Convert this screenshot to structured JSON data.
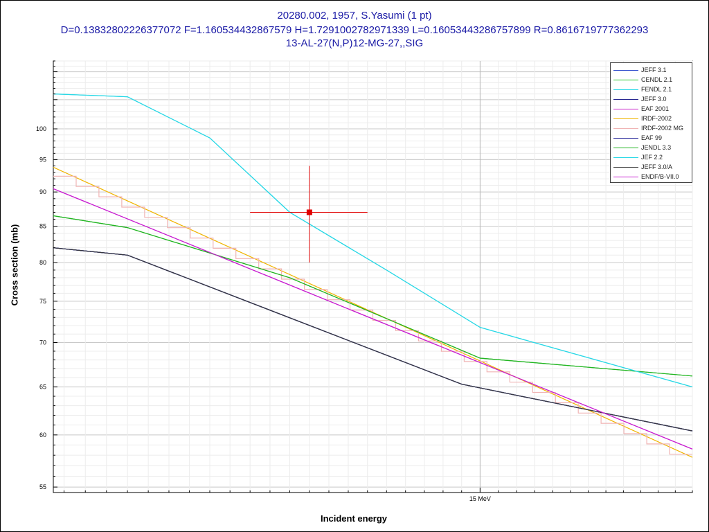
{
  "title": {
    "line1": "20280.002, 1957, S.Yasumi (1 pt)",
    "line2": "D=0.13832802226377072 F=1.160534432867579 H=1.7291002782971339 L=0.16053443286757899 R=0.8616719777362293",
    "line3": "13-AL-27(N,P)12-MG-27,,SIG"
  },
  "axes": {
    "xlabel": "Incident energy",
    "ylabel": "Cross section (mb)",
    "x_tick_label": "15 MeV"
  },
  "colors": {
    "title": "#1a1aa6",
    "data_point": "#e00000"
  },
  "chart_data": {
    "type": "line",
    "title": "20280.002, 1957, S.Yasumi (1 pt)",
    "xlabel": "Incident energy",
    "ylabel": "Cross section (mb)",
    "xscale": "log",
    "yscale": "log",
    "xlim": [
      12.85,
      16.2
    ],
    "ylim": [
      54.5,
      112
    ],
    "y_ticks": [
      55,
      60,
      65,
      70,
      75,
      80,
      85,
      90,
      95,
      100
    ],
    "x_ticks": [
      {
        "value": 15.0,
        "label": "15 MeV"
      }
    ],
    "grid": true,
    "legend": "top-right",
    "series": [
      {
        "name": "JEFF 3.1",
        "color": "#1e3cc8",
        "x": [
          12.85,
          13.2,
          14.9,
          16.2
        ],
        "y": [
          82.0,
          81.0,
          65.3,
          60.4
        ]
      },
      {
        "name": "CENDL 2.1",
        "color": "#22c422",
        "x": [
          12.85,
          13.2,
          14.0,
          15.0,
          16.2
        ],
        "y": [
          86.5,
          84.8,
          78.0,
          68.2,
          66.2
        ]
      },
      {
        "name": "FENDL 2.1",
        "color": "#2ad8e6",
        "x": [
          12.85,
          13.2,
          13.6,
          14.0,
          14.5,
          15.0,
          16.2
        ],
        "y": [
          106.0,
          105.5,
          98.5,
          87.0,
          79.0,
          71.8,
          65.0
        ]
      },
      {
        "name": "JEFF 3.0",
        "color": "#1e1e8c",
        "x": [
          12.85,
          13.2,
          14.9,
          16.2
        ],
        "y": [
          82.0,
          81.0,
          65.3,
          60.4
        ]
      },
      {
        "name": "EAF 2001",
        "color": "#c81ec8",
        "x": [
          12.85,
          16.2
        ],
        "y": [
          90.5,
          58.6
        ]
      },
      {
        "name": "IRDF-2002",
        "color": "#f0b400",
        "x": [
          12.85,
          16.2
        ],
        "y": [
          93.8,
          57.8
        ]
      },
      {
        "name": "IRDF-2002 MG",
        "color": "#f0b4b4",
        "x": [
          12.85,
          16.2
        ],
        "y": [
          93.2,
          57.6
        ]
      },
      {
        "name": "EAF 99",
        "color": "#0a0a8c",
        "x": [
          12.85,
          13.2,
          14.9,
          16.2
        ],
        "y": [
          82.0,
          81.0,
          65.3,
          60.4
        ]
      },
      {
        "name": "JENDL 3.3",
        "color": "#22b422",
        "x": [
          12.85,
          13.2,
          14.0,
          15.0,
          16.2
        ],
        "y": [
          86.5,
          84.8,
          78.0,
          68.2,
          66.2
        ]
      },
      {
        "name": "JEF 2.2",
        "color": "#2ad8e6",
        "x": [
          12.85,
          13.2,
          13.6,
          14.0,
          14.5,
          15.0,
          16.2
        ],
        "y": [
          106.0,
          105.5,
          98.5,
          87.0,
          79.0,
          71.8,
          65.0
        ]
      },
      {
        "name": "JEFF 3.0/A",
        "color": "#3c3c3c",
        "x": [
          12.85,
          13.2,
          14.9,
          16.2
        ],
        "y": [
          82.0,
          81.0,
          65.3,
          60.4
        ]
      },
      {
        "name": "ENDF/B-VII.0",
        "color": "#c81ed2",
        "x": [
          12.85,
          16.2
        ],
        "y": [
          90.5,
          58.6
        ]
      }
    ],
    "measurements": [
      {
        "x": 14.1,
        "y": 87.0,
        "xerr": [
          13.8,
          14.4
        ],
        "yerr": [
          80.0,
          94.0
        ]
      }
    ]
  }
}
